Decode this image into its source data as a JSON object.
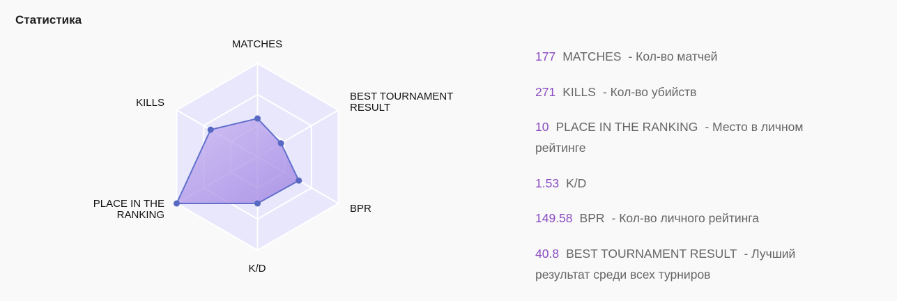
{
  "title": "Статистика",
  "chart_data": {
    "type": "radar",
    "axes": [
      "MATCHES",
      "BEST TOURNAMENT RESULT",
      "BPR",
      "K/D",
      "PLACE IN THE RANKING",
      "KILLS"
    ],
    "axis_label_lines": [
      [
        "MATCHES"
      ],
      [
        "BEST TOURNAMENT",
        "RESULT"
      ],
      [
        "BPR"
      ],
      [
        "K/D"
      ],
      [
        "PLACE IN THE",
        "RANKING"
      ],
      [
        "KILLS"
      ]
    ],
    "normalized_values": [
      0.41,
      0.29,
      0.51,
      0.5,
      1.0,
      0.58
    ],
    "colors": {
      "grid_fill": "#e9e7fb",
      "grid_line": "#ffffff",
      "area_fill": "#a98ee6",
      "area_stroke": "#6170cc",
      "point": "#5869c3"
    }
  },
  "stats": [
    {
      "value": "177",
      "name": "MATCHES",
      "desc": "- Кол-во матчей"
    },
    {
      "value": "271",
      "name": "KILLS",
      "desc": "- Кол-во убийств"
    },
    {
      "value": "10",
      "name": "PLACE IN THE RANKING",
      "desc": "- Место в личном рейтинге"
    },
    {
      "value": "1.53",
      "name": "K/D",
      "desc": ""
    },
    {
      "value": "149.58",
      "name": "BPR",
      "desc": "- Кол-во личного рейтинга"
    },
    {
      "value": "40.8",
      "name": "BEST TOURNAMENT RESULT",
      "desc": "- Лучший результат среди всех турниров"
    }
  ]
}
